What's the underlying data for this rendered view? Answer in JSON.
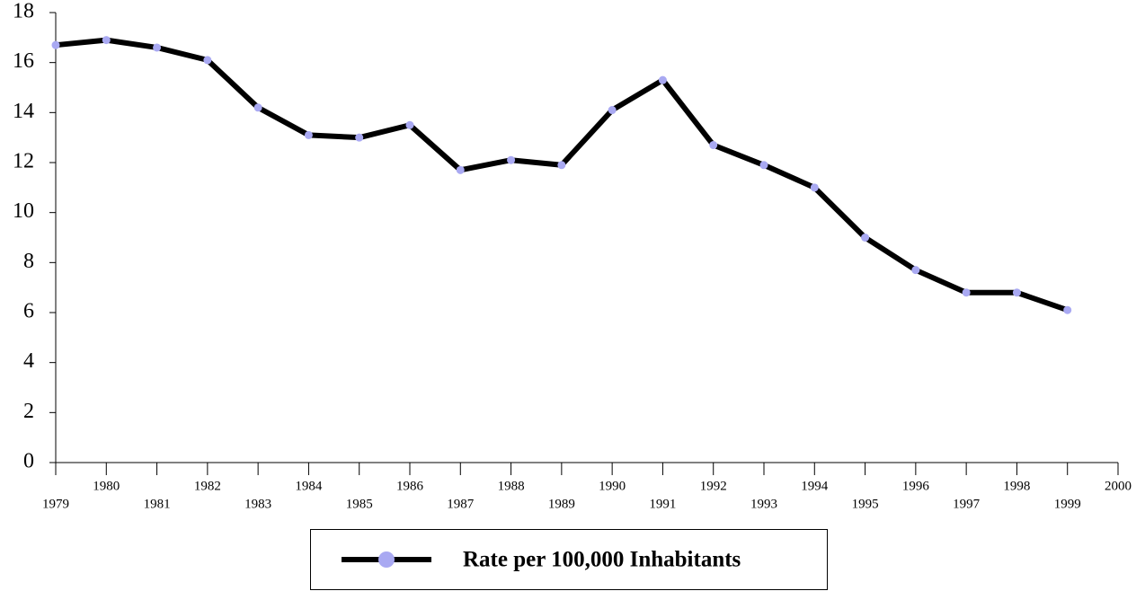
{
  "chart_data": {
    "type": "line",
    "x": [
      1979,
      1980,
      1981,
      1982,
      1983,
      1984,
      1985,
      1986,
      1987,
      1988,
      1989,
      1990,
      1991,
      1992,
      1993,
      1994,
      1995,
      1996,
      1997,
      1998,
      1999
    ],
    "series": [
      {
        "name": "Rate per 100,000 Inhabitants",
        "color": "#000000",
        "marker_color": "#a9a9f2",
        "values": [
          16.7,
          16.9,
          16.6,
          16.1,
          14.2,
          13.1,
          13.0,
          13.5,
          11.7,
          12.1,
          11.9,
          14.1,
          15.3,
          12.7,
          11.9,
          11.0,
          9.0,
          7.7,
          6.8,
          6.8,
          6.1
        ]
      }
    ],
    "xlim": [
      1979,
      2000
    ],
    "xticks": [
      1979,
      1980,
      1981,
      1982,
      1983,
      1984,
      1985,
      1986,
      1987,
      1988,
      1989,
      1990,
      1991,
      1992,
      1993,
      1994,
      1995,
      1996,
      1997,
      1998,
      1999,
      2000
    ],
    "ylim": [
      0,
      18
    ],
    "yticks": [
      0,
      2,
      4,
      6,
      8,
      10,
      12,
      14,
      16,
      18
    ],
    "grid": false,
    "legend": "bottom"
  }
}
